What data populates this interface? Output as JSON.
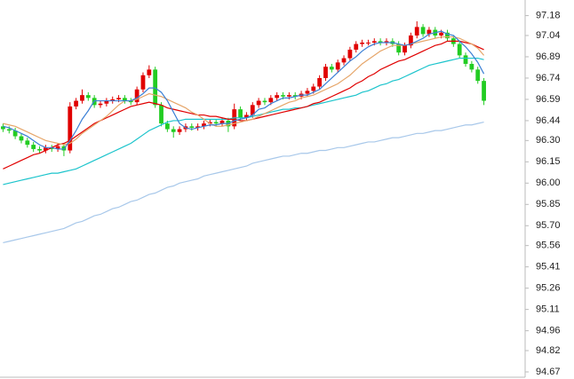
{
  "chart_data": {
    "type": "candlestick",
    "up_color": "#e00000",
    "down_color": "#22cc22",
    "ylim": [
      94.62,
      97.29
    ],
    "yticks": [
      97.18,
      97.04,
      96.89,
      96.74,
      96.59,
      96.44,
      {
        "value": 96.3,
        "label": "96.30"
      },
      96.15,
      {
        "value": 96.0,
        "label": "96.00"
      },
      95.85,
      {
        "value": 95.7,
        "label": "95.70"
      },
      95.56,
      95.41,
      95.26,
      95.11,
      94.96,
      94.82,
      94.67
    ],
    "open": [
      96.4,
      96.38,
      96.37,
      96.33,
      96.3,
      96.27,
      96.24,
      96.23,
      96.25,
      96.24,
      96.26,
      96.23,
      96.54,
      96.58,
      96.62,
      96.6,
      96.55,
      96.56,
      96.58,
      96.59,
      96.6,
      96.58,
      96.57,
      96.66,
      96.76,
      96.8,
      96.55,
      96.42,
      96.38,
      96.36,
      96.38,
      96.4,
      96.39,
      96.4,
      96.42,
      96.43,
      96.42,
      96.44,
      96.4,
      96.52,
      96.46,
      96.48,
      96.55,
      96.58,
      96.57,
      96.6,
      96.62,
      96.61,
      96.62,
      96.61,
      96.63,
      96.65,
      96.68,
      96.74,
      96.82,
      96.8,
      96.85,
      96.88,
      96.94,
      96.98,
      96.99,
      96.99,
      97.0,
      96.99,
      97.0,
      96.98,
      96.92,
      96.97,
      97.04,
      97.1,
      97.05,
      97.08,
      97.04,
      97.06,
      97.02,
      96.98,
      96.9,
      96.84,
      96.8,
      96.72
    ],
    "high": [
      96.42,
      96.4,
      96.39,
      96.35,
      96.32,
      96.29,
      96.26,
      96.27,
      96.27,
      96.28,
      96.28,
      96.57,
      96.6,
      96.66,
      96.64,
      96.62,
      96.58,
      96.6,
      96.61,
      96.62,
      96.62,
      96.6,
      96.68,
      96.78,
      96.83,
      96.82,
      96.57,
      96.44,
      96.4,
      96.4,
      96.42,
      96.42,
      96.42,
      96.44,
      96.45,
      96.45,
      96.46,
      96.46,
      96.56,
      96.54,
      96.5,
      96.57,
      96.6,
      96.6,
      96.62,
      96.64,
      96.64,
      96.64,
      96.64,
      96.65,
      96.67,
      96.7,
      96.76,
      96.84,
      96.84,
      96.87,
      96.9,
      96.96,
      97.0,
      97.01,
      97.01,
      97.02,
      97.02,
      97.02,
      97.02,
      97.0,
      96.99,
      97.06,
      97.14,
      97.12,
      97.1,
      97.1,
      97.08,
      97.08,
      97.04,
      97.0,
      96.92,
      96.86,
      96.82,
      96.74
    ],
    "low": [
      96.36,
      96.35,
      96.31,
      96.28,
      96.25,
      96.22,
      96.21,
      96.21,
      96.22,
      96.22,
      96.19,
      96.21,
      96.52,
      96.56,
      96.58,
      96.53,
      96.53,
      96.54,
      96.56,
      96.57,
      96.56,
      96.55,
      96.55,
      96.64,
      96.74,
      96.53,
      96.4,
      96.36,
      96.32,
      96.34,
      96.36,
      96.37,
      96.37,
      96.38,
      96.4,
      96.4,
      96.4,
      96.36,
      96.38,
      96.44,
      96.44,
      96.46,
      96.53,
      96.55,
      96.55,
      96.58,
      96.59,
      96.59,
      96.59,
      96.59,
      96.61,
      96.63,
      96.66,
      96.72,
      96.78,
      96.78,
      96.83,
      96.86,
      96.92,
      96.96,
      96.97,
      96.97,
      96.97,
      96.97,
      96.96,
      96.9,
      96.9,
      96.95,
      97.02,
      97.03,
      97.03,
      97.02,
      97.02,
      97.0,
      96.96,
      96.88,
      96.82,
      96.78,
      96.7,
      96.55
    ],
    "close": [
      96.38,
      96.37,
      96.33,
      96.3,
      96.27,
      96.24,
      96.23,
      96.25,
      96.24,
      96.26,
      96.23,
      96.54,
      96.58,
      96.62,
      96.6,
      96.55,
      96.56,
      96.58,
      96.59,
      96.6,
      96.58,
      96.57,
      96.66,
      96.76,
      96.8,
      96.55,
      96.42,
      96.38,
      96.36,
      96.38,
      96.4,
      96.39,
      96.4,
      96.42,
      96.43,
      96.42,
      96.44,
      96.4,
      96.52,
      96.46,
      96.48,
      96.55,
      96.58,
      96.57,
      96.6,
      96.62,
      96.61,
      96.62,
      96.61,
      96.63,
      96.65,
      96.68,
      96.74,
      96.82,
      96.8,
      96.85,
      96.88,
      96.94,
      96.98,
      96.99,
      96.99,
      97.0,
      96.99,
      97.0,
      96.98,
      96.92,
      96.97,
      97.04,
      97.1,
      97.05,
      97.08,
      97.04,
      97.06,
      97.02,
      96.98,
      96.9,
      96.84,
      96.8,
      96.72,
      96.58
    ],
    "series": [
      {
        "color": "#a8c8ea",
        "values": [
          95.58,
          95.59,
          95.6,
          95.61,
          95.62,
          95.63,
          95.64,
          95.65,
          95.66,
          95.67,
          95.68,
          95.7,
          95.72,
          95.73,
          95.75,
          95.77,
          95.78,
          95.8,
          95.82,
          95.83,
          95.85,
          95.87,
          95.88,
          95.9,
          95.92,
          95.93,
          95.95,
          95.97,
          95.98,
          96.0,
          96.01,
          96.02,
          96.03,
          96.05,
          96.06,
          96.07,
          96.08,
          96.09,
          96.1,
          96.11,
          96.12,
          96.14,
          96.15,
          96.16,
          96.17,
          96.18,
          96.19,
          96.19,
          96.2,
          96.21,
          96.21,
          96.22,
          96.23,
          96.23,
          96.24,
          96.25,
          96.25,
          96.26,
          96.27,
          96.28,
          96.29,
          96.29,
          96.3,
          96.31,
          96.32,
          96.32,
          96.33,
          96.34,
          96.35,
          96.35,
          96.36,
          96.37,
          96.37,
          96.38,
          96.39,
          96.4,
          96.41,
          96.41,
          96.42,
          96.43
        ]
      },
      {
        "color": "#1cc4cc",
        "values": [
          95.99,
          96.0,
          96.01,
          96.02,
          96.03,
          96.04,
          96.05,
          96.06,
          96.07,
          96.07,
          96.08,
          96.09,
          96.1,
          96.12,
          96.14,
          96.16,
          96.18,
          96.2,
          96.22,
          96.24,
          96.26,
          96.28,
          96.31,
          96.34,
          96.37,
          96.39,
          96.41,
          96.43,
          96.44,
          96.44,
          96.45,
          96.45,
          96.45,
          96.45,
          96.45,
          96.45,
          96.45,
          96.45,
          96.46,
          96.46,
          96.46,
          96.47,
          96.48,
          96.49,
          96.5,
          96.51,
          96.52,
          96.52,
          96.53,
          96.53,
          96.54,
          96.55,
          96.56,
          96.57,
          96.58,
          96.59,
          96.6,
          96.61,
          96.62,
          96.64,
          96.65,
          96.67,
          96.69,
          96.7,
          96.72,
          96.73,
          96.75,
          96.77,
          96.79,
          96.81,
          96.83,
          96.84,
          96.85,
          96.86,
          96.87,
          96.88,
          96.88,
          96.88,
          96.88,
          96.87
        ]
      },
      {
        "color": "#e00000",
        "values": [
          96.1,
          96.12,
          96.14,
          96.16,
          96.18,
          96.2,
          96.21,
          96.23,
          96.25,
          96.27,
          96.28,
          96.3,
          96.33,
          96.36,
          96.39,
          96.42,
          96.44,
          96.46,
          96.48,
          96.5,
          96.52,
          96.54,
          96.55,
          96.56,
          96.57,
          96.56,
          96.55,
          96.53,
          96.52,
          96.51,
          96.5,
          96.49,
          96.48,
          96.48,
          96.47,
          96.47,
          96.46,
          96.45,
          96.45,
          96.44,
          96.44,
          96.45,
          96.46,
          96.47,
          96.48,
          96.49,
          96.5,
          96.51,
          96.52,
          96.53,
          96.54,
          96.56,
          96.57,
          96.59,
          96.61,
          96.63,
          96.65,
          96.67,
          96.7,
          96.72,
          96.75,
          96.77,
          96.8,
          96.82,
          96.84,
          96.86,
          96.87,
          96.89,
          96.91,
          96.93,
          96.95,
          96.97,
          96.98,
          97.0,
          97.0,
          97.0,
          96.99,
          96.98,
          96.96,
          96.94
        ]
      },
      {
        "color": "#e6a66a",
        "values": [
          96.42,
          96.41,
          96.4,
          96.38,
          96.36,
          96.34,
          96.32,
          96.3,
          96.29,
          96.28,
          96.27,
          96.28,
          96.31,
          96.35,
          96.38,
          96.41,
          96.44,
          96.47,
          96.51,
          96.55,
          96.58,
          96.58,
          96.59,
          96.61,
          96.63,
          96.62,
          96.61,
          96.59,
          96.57,
          96.55,
          96.53,
          96.5,
          96.48,
          96.45,
          96.42,
          96.4,
          96.4,
          96.41,
          96.42,
          96.43,
          96.44,
          96.45,
          96.47,
          96.49,
          96.51,
          96.53,
          96.55,
          96.57,
          96.58,
          96.6,
          96.61,
          96.62,
          96.64,
          96.66,
          96.68,
          96.7,
          96.73,
          96.76,
          96.8,
          96.84,
          96.87,
          96.9,
          96.93,
          96.95,
          96.97,
          96.97,
          96.97,
          96.98,
          96.99,
          97.0,
          97.01,
          97.02,
          97.03,
          97.03,
          97.03,
          97.02,
          97.0,
          96.98,
          96.95,
          96.9
        ]
      },
      {
        "color": "#3a7fd5",
        "values": [
          96.4,
          96.39,
          96.37,
          96.35,
          96.33,
          96.3,
          96.27,
          96.25,
          96.25,
          96.24,
          96.24,
          96.3,
          96.37,
          96.45,
          96.51,
          96.58,
          96.58,
          96.58,
          96.58,
          96.58,
          96.58,
          96.58,
          96.6,
          96.63,
          96.67,
          96.67,
          96.64,
          96.58,
          96.5,
          96.42,
          96.39,
          96.38,
          96.39,
          96.4,
          96.41,
          96.41,
          96.42,
          96.42,
          96.44,
          96.45,
          96.46,
          96.48,
          96.52,
          96.53,
          96.56,
          96.58,
          96.6,
          96.6,
          96.61,
          96.62,
          96.62,
          96.64,
          96.66,
          96.7,
          96.74,
          96.78,
          96.82,
          96.86,
          96.89,
          96.93,
          96.96,
          96.98,
          96.99,
          96.99,
          96.99,
          96.98,
          96.97,
          96.98,
          97.0,
          97.02,
          97.05,
          97.06,
          97.07,
          97.05,
          97.04,
          97.0,
          96.96,
          96.91,
          96.85,
          96.77
        ]
      }
    ]
  }
}
